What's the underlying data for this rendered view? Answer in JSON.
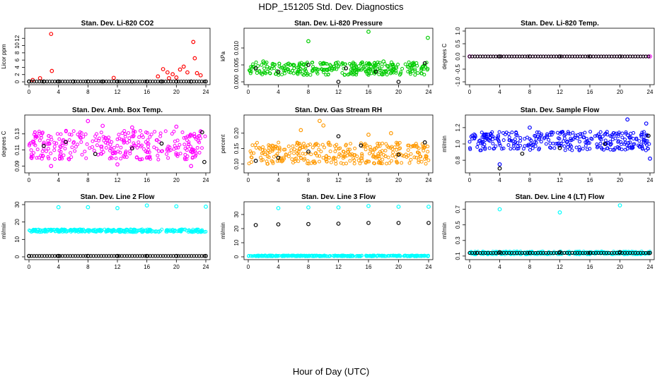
{
  "title": "HDP_151205  Std. Dev. Diagnostics",
  "xlabel": "Hour of Day (UTC)",
  "chart_data": [
    {
      "type": "scatter",
      "title": "Stan. Dev. Li-820 CO2",
      "ylabel": "Licor ppm",
      "xlim": [
        0,
        24
      ],
      "ylim": [
        0,
        14
      ],
      "xticks": [
        0,
        4,
        8,
        12,
        16,
        20,
        24
      ],
      "yticks": [
        0,
        2,
        4,
        6,
        8,
        10,
        12
      ],
      "series": [
        {
          "color": "#ff0000",
          "points": [
            [
              3,
              13.2
            ],
            [
              3.1,
              3.0
            ],
            [
              0.5,
              0.5
            ],
            [
              1.5,
              1.0
            ],
            [
              11.5,
              1.1
            ],
            [
              17.5,
              1.5
            ],
            [
              18.2,
              3.5
            ],
            [
              18.8,
              2.6
            ],
            [
              19.5,
              2.1
            ],
            [
              20.5,
              3.4
            ],
            [
              21.0,
              4.2
            ],
            [
              21.5,
              2.6
            ],
            [
              22.3,
              11.0
            ],
            [
              22.5,
              6.5
            ],
            [
              22.8,
              2.4
            ],
            [
              23.3,
              1.8
            ],
            [
              20.0,
              1.2
            ],
            [
              19.0,
              1.0
            ]
          ]
        },
        {
          "color": "#000000",
          "points": [
            [
              0,
              0.1
            ],
            [
              2,
              0.1
            ],
            [
              4,
              0.1
            ],
            [
              6,
              0.1
            ],
            [
              8,
              0.1
            ],
            [
              10,
              0.1
            ],
            [
              12,
              0.1
            ],
            [
              14,
              0.1
            ],
            [
              16,
              0.1
            ],
            [
              18,
              0.1
            ],
            [
              20,
              0.1
            ],
            [
              22,
              0.1
            ],
            [
              24,
              0.1
            ]
          ]
        }
      ]
    },
    {
      "type": "scatter",
      "title": "Stan. Dev. Li-820 Pressure",
      "ylabel": "kPa",
      "xlim": [
        0,
        24
      ],
      "ylim": [
        0,
        0.015
      ],
      "xticks": [
        0,
        4,
        8,
        12,
        16,
        20,
        24
      ],
      "yticks": [
        0.0,
        0.005,
        0.01
      ],
      "yticklabels": [
        "0.000",
        "0.005",
        "0.010"
      ],
      "series": [
        {
          "color": "#00cc00",
          "points": [
            [
              8,
              0.012
            ],
            [
              16,
              0.0148
            ],
            [
              23.9,
              0.013
            ],
            [
              2,
              0.006
            ],
            [
              6,
              0.005
            ],
            [
              10,
              0.0055
            ],
            [
              14,
              0.004
            ],
            [
              18,
              0.006
            ],
            [
              22,
              0.005
            ]
          ]
        },
        {
          "color": "#000000",
          "points": [
            [
              1,
              0.004
            ],
            [
              4,
              0.003
            ],
            [
              8,
              0.005
            ],
            [
              13,
              0.004
            ],
            [
              17,
              0.003
            ],
            [
              23.5,
              0.0055
            ],
            [
              12,
              0.0
            ],
            [
              20,
              0.0
            ]
          ]
        }
      ],
      "band": {
        "color": "#00cc00",
        "y": [
          0.002,
          0.0058
        ]
      }
    },
    {
      "type": "scatter",
      "title": "Stan. Dev. Li-820 Temp.",
      "ylabel": "degrees C",
      "xlim": [
        0,
        24
      ],
      "ylim": [
        -1,
        1
      ],
      "xticks": [
        0,
        4,
        8,
        12,
        16,
        20,
        24
      ],
      "yticks": [
        -1.0,
        -0.5,
        0.0,
        0.5,
        1.0
      ],
      "yticklabels": [
        "-1.0",
        "-0.5",
        "0.0",
        "0.5",
        "1.0"
      ],
      "series": [
        {
          "color": "#ff00ff",
          "points": [
            [
              0,
              0.0
            ],
            [
              24,
              0.0
            ]
          ]
        },
        {
          "color": "#000000",
          "points": [
            [
              4,
              0.0
            ],
            [
              8,
              0.0
            ],
            [
              12,
              0.0
            ],
            [
              16,
              0.0
            ],
            [
              20,
              0.0
            ]
          ]
        }
      ]
    },
    {
      "type": "scatter",
      "title": "Stan. Dev. Amb. Box Temp.",
      "ylabel": "degrees C",
      "xlim": [
        0,
        24
      ],
      "ylim": [
        0.085,
        0.15
      ],
      "xticks": [
        0,
        4,
        8,
        12,
        16,
        20,
        24
      ],
      "yticks": [
        0.09,
        0.11,
        0.13
      ],
      "yticklabels": [
        "0.09",
        "0.11",
        "0.13"
      ],
      "series": [
        {
          "color": "#ff00ff",
          "points": [
            [
              8,
              0.146
            ],
            [
              10,
              0.14
            ],
            [
              14,
              0.138
            ],
            [
              20,
              0.139
            ],
            [
              3,
              0.09
            ],
            [
              12,
              0.092
            ],
            [
              22,
              0.09
            ]
          ]
        },
        {
          "color": "#000000",
          "points": [
            [
              2,
              0.115
            ],
            [
              5,
              0.12
            ],
            [
              9,
              0.105
            ],
            [
              14,
              0.112
            ],
            [
              18,
              0.118
            ],
            [
              23.5,
              0.132
            ],
            [
              23.8,
              0.095
            ]
          ]
        }
      ],
      "band": {
        "color": "#ff00ff",
        "y": [
          0.098,
          0.135
        ]
      }
    },
    {
      "type": "scatter",
      "title": "Stan. Dev. Gas Stream RH",
      "ylabel": "percent",
      "xlim": [
        0,
        24
      ],
      "ylim": [
        0.08,
        0.25
      ],
      "xticks": [
        0,
        4,
        8,
        12,
        16,
        20,
        24
      ],
      "yticks": [
        0.1,
        0.15,
        0.2
      ],
      "yticklabels": [
        "0.10",
        "0.15",
        "0.20"
      ],
      "series": [
        {
          "color": "#ff9900",
          "points": [
            [
              9.5,
              0.24
            ],
            [
              10,
              0.225
            ],
            [
              7,
              0.21
            ],
            [
              16,
              0.195
            ],
            [
              19,
              0.2
            ]
          ]
        },
        {
          "color": "#000000",
          "points": [
            [
              1,
              0.11
            ],
            [
              4,
              0.12
            ],
            [
              8,
              0.14
            ],
            [
              12,
              0.19
            ],
            [
              15,
              0.16
            ],
            [
              20,
              0.13
            ],
            [
              23.5,
              0.17
            ]
          ]
        }
      ],
      "band": {
        "color": "#ff9900",
        "y": [
          0.1,
          0.17
        ]
      }
    },
    {
      "type": "scatter",
      "title": "Stan. Dev. Sample Flow",
      "ylabel": "ml/min",
      "xlim": [
        0,
        24
      ],
      "ylim": [
        0.68,
        1.32
      ],
      "xticks": [
        0,
        4,
        8,
        12,
        16,
        20,
        24
      ],
      "yticks": [
        0.8,
        1.0,
        1.2
      ],
      "yticklabels": [
        "0.8",
        "1.0",
        "1.2"
      ],
      "series": [
        {
          "color": "#0000ff",
          "points": [
            [
              21,
              1.3
            ],
            [
              23.5,
              1.25
            ],
            [
              4,
              0.75
            ],
            [
              24,
              0.82
            ],
            [
              8,
              1.2
            ]
          ]
        },
        {
          "color": "#000000",
          "points": [
            [
              4,
              0.7
            ],
            [
              7,
              0.88
            ],
            [
              12,
              0.95
            ],
            [
              18,
              1.0
            ],
            [
              23.8,
              1.1
            ]
          ]
        }
      ],
      "band": {
        "color": "#0000ff",
        "y": [
          0.92,
          1.15
        ]
      }
    },
    {
      "type": "scatter",
      "title": "Stan. Dev. Line 2 Flow",
      "ylabel": "ml/min",
      "xlim": [
        0,
        24
      ],
      "ylim": [
        0,
        30
      ],
      "xticks": [
        0,
        4,
        8,
        12,
        16,
        20,
        24
      ],
      "yticks": [
        0,
        10,
        20,
        30
      ],
      "series": [
        {
          "color": "#00ffff",
          "points": [
            [
              4,
              28.5
            ],
            [
              8,
              28.5
            ],
            [
              12,
              28.0
            ],
            [
              16,
              29.5
            ],
            [
              20,
              29.0
            ],
            [
              24,
              28.8
            ]
          ]
        },
        {
          "color": "#000000",
          "points": [
            [
              0,
              0.5
            ],
            [
              4,
              0.5
            ],
            [
              8,
              0.5
            ],
            [
              12,
              0.5
            ],
            [
              16,
              0.5
            ],
            [
              20,
              0.5
            ],
            [
              24,
              0.5
            ]
          ]
        }
      ],
      "band": {
        "color": "#00ffff",
        "y": [
          14.2,
          15.8
        ]
      }
    },
    {
      "type": "scatter",
      "title": "Stan. Dev. Line 3 Flow",
      "ylabel": "ml/min",
      "xlim": [
        0,
        24
      ],
      "ylim": [
        0,
        37
      ],
      "xticks": [
        0,
        4,
        8,
        12,
        16,
        20,
        24
      ],
      "yticks": [
        0,
        10,
        20,
        30
      ],
      "series": [
        {
          "color": "#00ffff",
          "points": [
            [
              4,
              34.5
            ],
            [
              8,
              35.0
            ],
            [
              12,
              35.0
            ],
            [
              16,
              36.0
            ],
            [
              20,
              35.5
            ],
            [
              24,
              35.5
            ]
          ]
        },
        {
          "color": "#000000",
          "points": [
            [
              1,
              22.5
            ],
            [
              4,
              23.0
            ],
            [
              8,
              23.2
            ],
            [
              12,
              23.5
            ],
            [
              16,
              24.0
            ],
            [
              20,
              24.0
            ],
            [
              24,
              24.0
            ]
          ]
        }
      ],
      "band": {
        "color": "#00ffff",
        "y": [
          0.3,
          1.0
        ]
      }
    },
    {
      "type": "scatter",
      "title": "Stan. Dev. Line 4 (LT) Flow",
      "ylabel": "ml/min",
      "xlim": [
        0,
        24
      ],
      "ylim": [
        0.09,
        0.76
      ],
      "xticks": [
        0,
        4,
        8,
        12,
        16,
        20,
        24
      ],
      "yticks": [
        0.1,
        0.3,
        0.5,
        0.7
      ],
      "yticklabels": [
        "0.1",
        "0.3",
        "0.5",
        "0.7"
      ],
      "series": [
        {
          "color": "#00ffff",
          "points": [
            [
              4,
              0.7
            ],
            [
              12,
              0.66
            ],
            [
              20,
              0.75
            ]
          ]
        },
        {
          "color": "#000000",
          "points": [
            [
              1,
              0.14
            ],
            [
              4,
              0.15
            ],
            [
              8,
              0.14
            ],
            [
              12,
              0.15
            ],
            [
              16,
              0.14
            ],
            [
              20,
              0.15
            ],
            [
              24,
              0.14
            ]
          ]
        }
      ],
      "band": {
        "color": "#00ffff",
        "y": [
          0.12,
          0.16
        ]
      }
    }
  ]
}
